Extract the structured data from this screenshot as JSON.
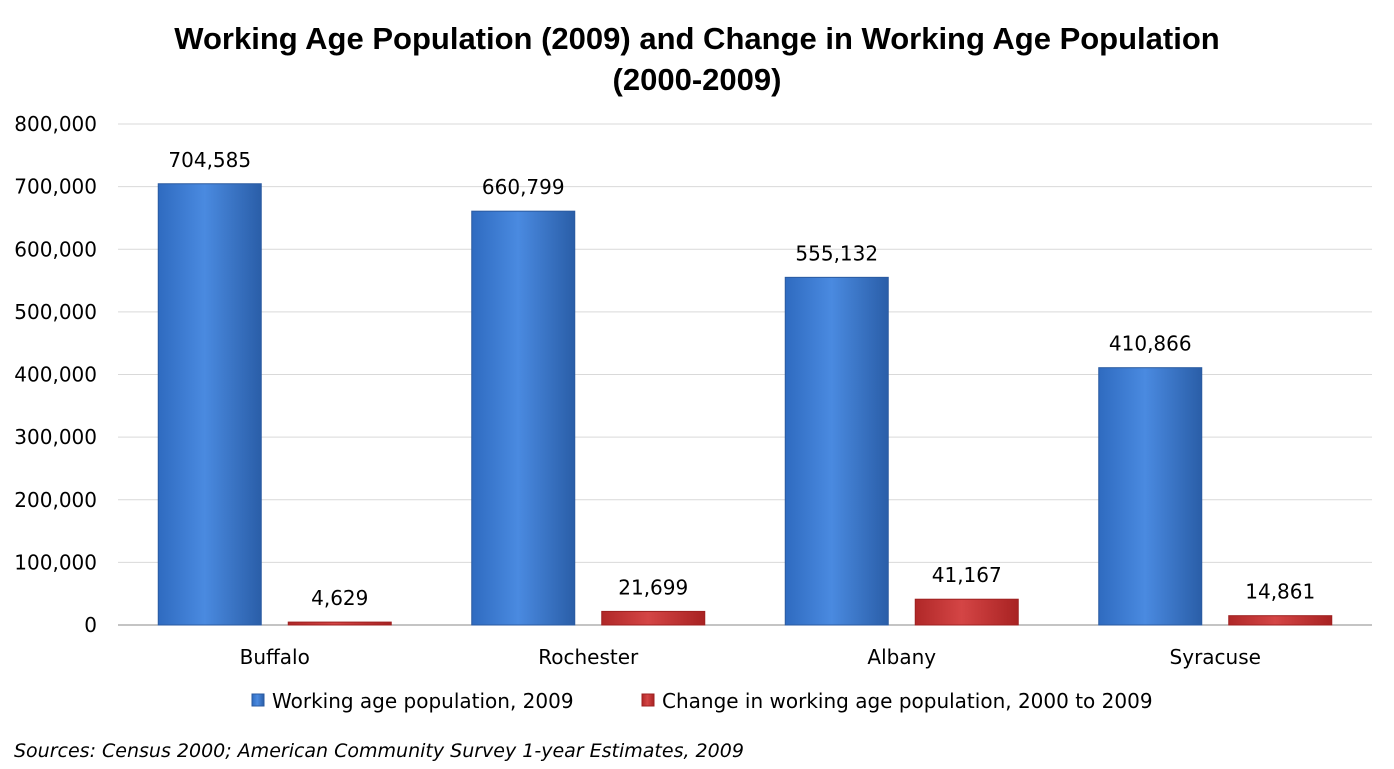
{
  "chart_data": {
    "type": "bar",
    "title_line1": "Working Age Population (2009) and Change in Working Age Population",
    "title_line2": "(2000-2009)",
    "categories": [
      "Buffalo",
      "Rochester",
      "Albany",
      "Syracuse"
    ],
    "series": [
      {
        "name": "Working age population, 2009",
        "values": [
          704585,
          660799,
          555132,
          410866
        ],
        "labels": [
          "704,585",
          "660,799",
          "555,132",
          "410,866"
        ],
        "color": "#3b7bd4"
      },
      {
        "name": "Change in working age population, 2000 to 2009",
        "values": [
          4629,
          21699,
          41167,
          14861
        ],
        "labels": [
          "4,629",
          "21,699",
          "41,167",
          "14,861"
        ],
        "color": "#cc3a3a"
      }
    ],
    "ylim": [
      0,
      800000
    ],
    "yticks": [
      0,
      100000,
      200000,
      300000,
      400000,
      500000,
      600000,
      700000,
      800000
    ],
    "ytick_labels": [
      "0",
      "100,000",
      "200,000",
      "300,000",
      "400,000",
      "500,000",
      "600,000",
      "700,000",
      "800,000"
    ],
    "grid": true,
    "legend_position": "bottom"
  },
  "source_note": "Sources: Census 2000; American Community Survey 1-year Estimates, 2009"
}
